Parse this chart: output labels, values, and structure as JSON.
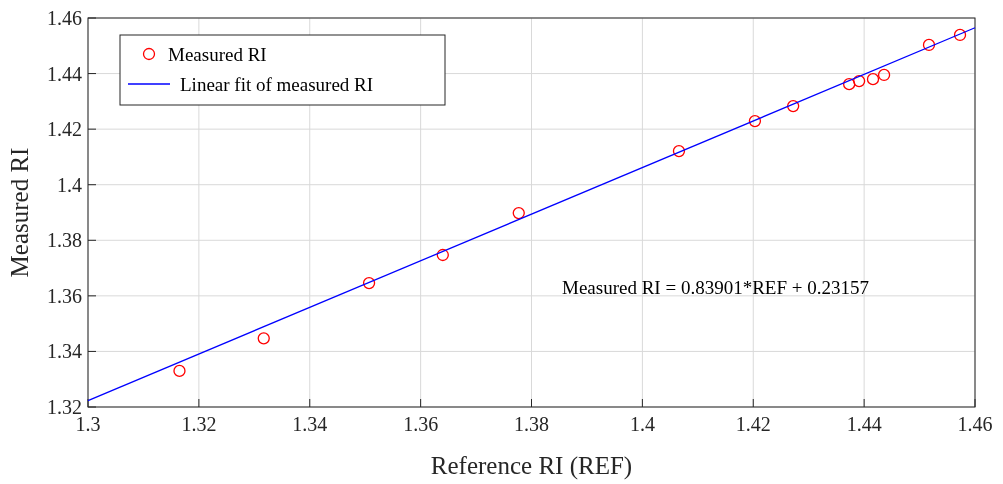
{
  "chart_data": {
    "type": "scatter",
    "xlabel": "Reference RI (REF)",
    "ylabel": "Measured RI",
    "xlim": [
      1.3,
      1.46
    ],
    "xticks": [
      1.3,
      1.32,
      1.34,
      1.36,
      1.38,
      1.4,
      1.42,
      1.44,
      1.46
    ],
    "ylim": [
      1.32,
      1.46
    ],
    "yticks": [
      1.32,
      1.34,
      1.36,
      1.38,
      1.4,
      1.42,
      1.44,
      1.46
    ],
    "grid": true,
    "legend": "top left",
    "annotations": [
      "Measured RI = 0.83901*REF + 0.23157"
    ],
    "series": [
      {
        "name": "Measured RI",
        "marker": "circle",
        "color": "#ff0000",
        "x": [
          1.3165,
          1.3317,
          1.3507,
          1.364,
          1.3777,
          1.4066,
          1.4203,
          1.4272,
          1.4373,
          1.4391,
          1.4416,
          1.4436,
          1.4517,
          1.4573
        ],
        "values": [
          1.333,
          1.3447,
          1.3646,
          1.3747,
          1.3898,
          1.4121,
          1.4229,
          1.4283,
          1.4362,
          1.4373,
          1.438,
          1.4395,
          1.4503,
          1.4539
        ]
      },
      {
        "name": "Linear fit of measured RI",
        "type": "line",
        "line_style": "solid",
        "color": "#0000ff",
        "x": [
          1.3,
          1.46
        ],
        "values": [
          1.3223,
          1.4565
        ]
      }
    ]
  }
}
